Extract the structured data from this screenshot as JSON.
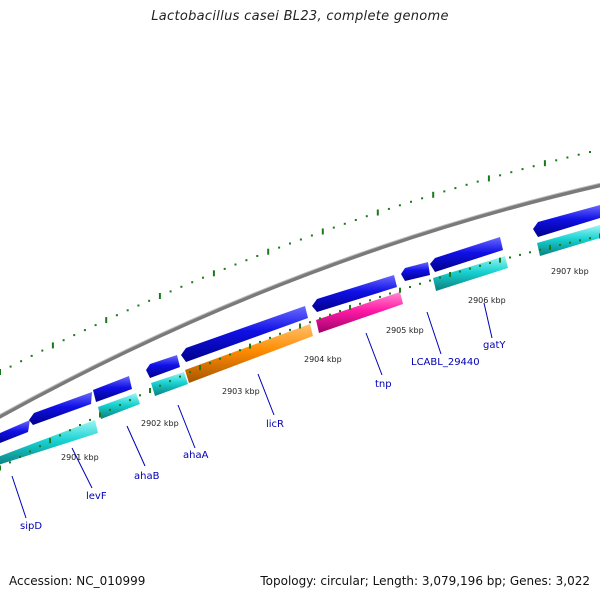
{
  "title": "Lactobacillus casei BL23, complete genome",
  "footer": {
    "accession": "Accession: NC_010999",
    "summary": "Topology: circular; Length: 3,079,196 bp; Genes: 3,022"
  },
  "colors": {
    "backbone": "#777777",
    "tick": "#1a7a1a",
    "gene_label": "#0000b4",
    "forward_cds": "#1010e6",
    "reverse_cds": "#19d2d2",
    "orange_gene": "#ff8c00",
    "pink_gene": "#ff1aa6"
  },
  "kbp_labels": [
    "2901 kbp",
    "2902 kbp",
    "2903 kbp",
    "2904 kbp",
    "2905 kbp",
    "2906 kbp",
    "2907 kbp"
  ],
  "gene_labels": [
    "sipD",
    "levF",
    "ahaB",
    "ahaA",
    "licR",
    "tnp",
    "LCABL_29440",
    "gatY"
  ]
}
